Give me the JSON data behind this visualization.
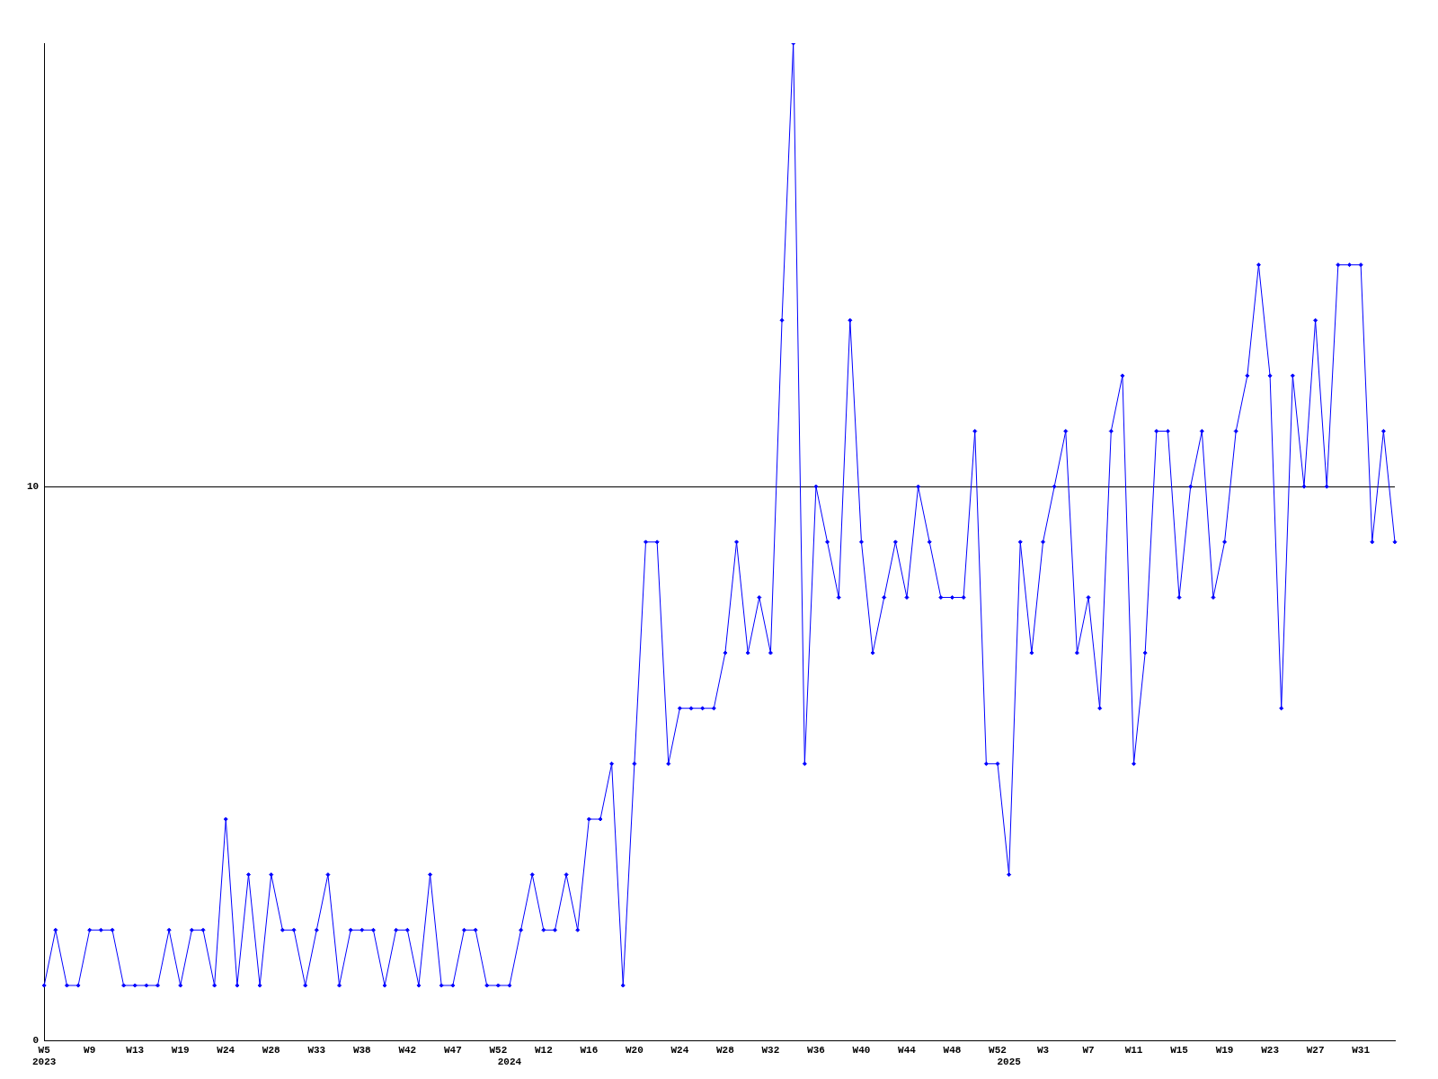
{
  "chart_data": {
    "type": "line",
    "categories": [
      "W5\n2023",
      null,
      null,
      null,
      "W9",
      null,
      null,
      null,
      "W13",
      null,
      null,
      null,
      "W19",
      null,
      null,
      null,
      "W24",
      null,
      null,
      null,
      "W28",
      null,
      null,
      null,
      "W33",
      null,
      null,
      null,
      "W38",
      null,
      null,
      null,
      "W42",
      null,
      null,
      null,
      "W47",
      null,
      null,
      null,
      "W52",
      "\n2024",
      null,
      null,
      "W12",
      null,
      null,
      null,
      "W16",
      null,
      null,
      null,
      "W20",
      null,
      null,
      null,
      "W24",
      null,
      null,
      null,
      "W28",
      null,
      null,
      null,
      "W32",
      null,
      null,
      null,
      "W36",
      null,
      null,
      null,
      "W40",
      null,
      null,
      null,
      "W44",
      null,
      null,
      null,
      "W48",
      null,
      null,
      null,
      "W52",
      "\n2025",
      null,
      null,
      "W3",
      null,
      null,
      null,
      "W7",
      null,
      null,
      null,
      "W11",
      null,
      null,
      null,
      "W15",
      null,
      null,
      null,
      "W19",
      null,
      null,
      null,
      "W23",
      null,
      null,
      null,
      "W27",
      null,
      null,
      null,
      "W31",
      null,
      null,
      null
    ],
    "series": [
      {
        "color": "#0000ff",
        "values": [
          1,
          2,
          1,
          1,
          2,
          2,
          2,
          1,
          1,
          1,
          1,
          2,
          1,
          2,
          2,
          1,
          4,
          1,
          3,
          1,
          3,
          2,
          2,
          1,
          2,
          3,
          1,
          2,
          2,
          2,
          1,
          2,
          2,
          1,
          3,
          1,
          1,
          2,
          2,
          1,
          1,
          1,
          2,
          3,
          2,
          2,
          3,
          2,
          4,
          4,
          5,
          1,
          5,
          9,
          9,
          5,
          6,
          6,
          6,
          6,
          7,
          9,
          7,
          8,
          7,
          13,
          18,
          5,
          10,
          9,
          8,
          13,
          9,
          7,
          8,
          9,
          8,
          10,
          9,
          8,
          8,
          8,
          11,
          5,
          5,
          3,
          9,
          7,
          9,
          10,
          11,
          7,
          8,
          6,
          11,
          12,
          5,
          7,
          11,
          11,
          8,
          10,
          11,
          8,
          9,
          11,
          12,
          14,
          12,
          6,
          12,
          10,
          13,
          10,
          14,
          14,
          14,
          9,
          11,
          9
        ]
      }
    ],
    "ylim": [
      0,
      18
    ],
    "yticks": [
      0,
      10
    ],
    "grid": "y",
    "marker": "diamond",
    "line_style": "solid",
    "legend": false
  }
}
